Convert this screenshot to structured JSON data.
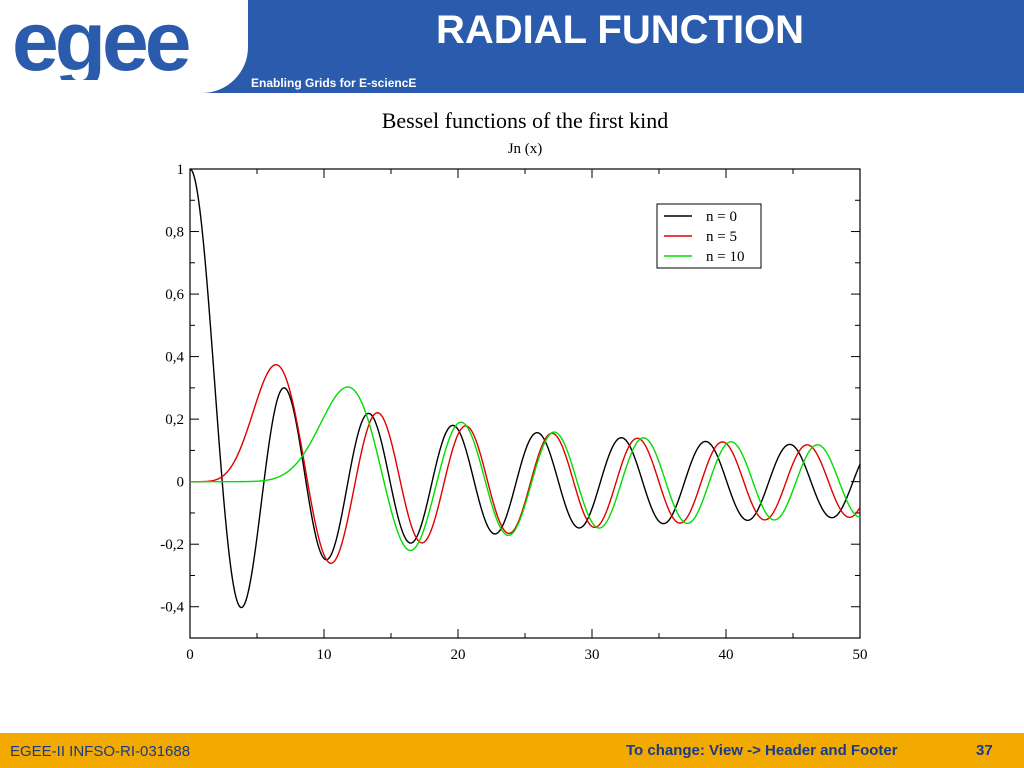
{
  "slide": {
    "title": "RADIAL FUNCTION",
    "tagline": "Enabling Grids for E-sciencE",
    "logo_text": "egee",
    "logo_icon": "egee-logo-icon",
    "colors": {
      "header": "#2a5bac",
      "footer": "#f2a900",
      "footer_text": "#1a3a8a",
      "logo_blue": "#2a5bac",
      "logo_yellow": "#f2a900"
    }
  },
  "footer": {
    "left": "EGEE-II INFSO-RI-031688",
    "center": "To change: View -> Header and Footer",
    "page": "37"
  },
  "chart_data": {
    "type": "line",
    "title": "Bessel functions of the first kind",
    "subtitle": "Jn (x)",
    "xlabel": "",
    "ylabel": "",
    "xlim": [
      0,
      50
    ],
    "ylim": [
      -0.5,
      1
    ],
    "x_ticks": [
      0,
      10,
      20,
      30,
      40,
      50
    ],
    "x_tick_labels": [
      "0",
      "10",
      "20",
      "30",
      "40",
      "50"
    ],
    "y_ticks": [
      -0.4,
      -0.2,
      0,
      0.2,
      0.4,
      0.6,
      0.8,
      1
    ],
    "y_tick_labels": [
      "-0,4",
      "-0,2",
      "0",
      "0,2",
      "0,4",
      "0,6",
      "0,8",
      "1"
    ],
    "grid": false,
    "legend_position": "top-right",
    "series": [
      {
        "name": "n = 0",
        "order": 0,
        "color": "#000000"
      },
      {
        "name": "n = 5",
        "order": 5,
        "color": "#e00000"
      },
      {
        "name": "n = 10",
        "order": 10,
        "color": "#00dd00"
      }
    ]
  }
}
